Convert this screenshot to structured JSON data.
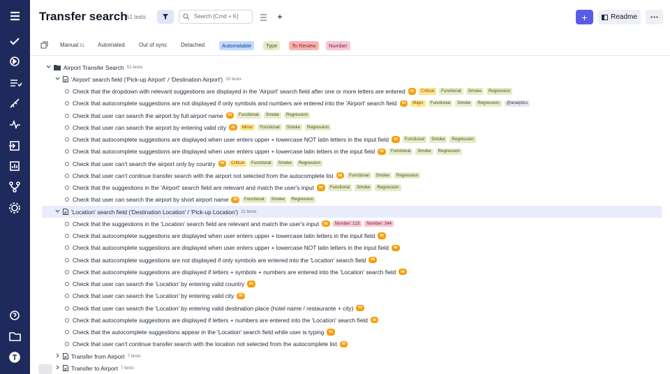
{
  "header": {
    "title": "Transfer search",
    "count": "51 tests",
    "search_placeholder": "Search [Cmd + K]",
    "add_button": "+",
    "readme_button": "Readme"
  },
  "tabs": [
    {
      "label": "Manual",
      "count": "51"
    },
    {
      "label": "Automated"
    },
    {
      "label": "Out of sync"
    },
    {
      "label": "Detached"
    }
  ],
  "filters": [
    "Automatable",
    "Type",
    "To Review",
    "Number"
  ],
  "tree": {
    "root": {
      "label": "Airport Transfer Search",
      "count": "51 tests"
    },
    "suites": [
      {
        "label": "'Airport' search field ('Pick-up Airport' / 'Destination Airport')",
        "count": "10 tests",
        "cases": [
          {
            "title": "Check that the dropdown with relevant suggestions are displayed in the 'Airport' search field after one or more letters are entered",
            "layer": "m",
            "priority": "Critical",
            "types": [
              "Functional",
              "Smoke",
              "Regression"
            ]
          },
          {
            "title": "Check that autocomplete suggestions are not displayed if only symbols and numbers are entered into the 'Airport' search field",
            "layer": "m",
            "priority": "Major",
            "types": [
              "Functional",
              "Smoke",
              "Regression"
            ],
            "labels": [
              "@analytics"
            ]
          },
          {
            "title": "Check that user can search the airport by full airport name",
            "layer": "m",
            "types": [
              "Functional",
              "Smoke",
              "Regression"
            ]
          },
          {
            "title": "Check that user can search the airport by entering valid city",
            "layer": "m",
            "priority": "Minor",
            "types": [
              "Functional",
              "Smoke",
              "Regression"
            ]
          },
          {
            "title": "Check that autocomplete suggestions are displayed when user enters upper + lowercase NOT latin letters in the input field",
            "layer": "m",
            "types": [
              "Functional",
              "Smoke",
              "Regression"
            ]
          },
          {
            "title": "Check that autocomplete suggestions are displayed when user enters upper + lowercase latin letters in the input field",
            "layer": "m",
            "types": [
              "Functional",
              "Smoke",
              "Regression"
            ]
          },
          {
            "title": "Check that user can't search the airport only by country",
            "layer": "m",
            "priority": "Critical",
            "types": [
              "Functional",
              "Smoke",
              "Regression"
            ]
          },
          {
            "title": "Check that user can't continue transfer search with the airport not selected from the autocomplete list",
            "layer": "m",
            "types": [
              "Functional",
              "Smoke",
              "Regression"
            ]
          },
          {
            "title": "Check that the suggestions in the 'Airport' search field are relevant and match the user's input",
            "layer": "m",
            "types": [
              "Functional",
              "Smoke",
              "Regression"
            ]
          },
          {
            "title": "Check that user can search the airport by short airport name",
            "layer": "m",
            "types": [
              "Functional",
              "Smoke",
              "Regression"
            ]
          }
        ]
      },
      {
        "label": "'Location' search field ('Destination Location' / 'Pick-up Location')",
        "count": "11 tests",
        "cases": [
          {
            "title": "Check that the suggestions in the 'Location' search field are relevant and match the user's input",
            "layer": "m",
            "numbers": [
              "Number: 123",
              "Number: 344"
            ]
          },
          {
            "title": "Check that autocomplete suggestions are displayed when user enters upper + lowercase latin letters in the input field",
            "layer": "m"
          },
          {
            "title": "Check that autocomplete suggestions are displayed when user enters upper + lowercase NOT latin letters in the input field",
            "layer": "m"
          },
          {
            "title": "Check that autocomplete suggestions are not displayed if only symbols are entered into the 'Location' search field",
            "layer": "m"
          },
          {
            "title": "Check that autocomplete suggestions are displayed if letters + symbols + numbers are entered into the 'Location' search field",
            "layer": "m"
          },
          {
            "title": "Check that user can search the 'Location' by entering valid country",
            "layer": "m"
          },
          {
            "title": "Check that user can search the 'Location' by entering valid city",
            "layer": "m"
          },
          {
            "title": "Check that user can search the 'Location' by entering valid destination place (hotel name / restaurante + city)",
            "layer": "m"
          },
          {
            "title": "Check that autocomplete suggestions are displayed if letters + numbers are entered into the 'Location' search field",
            "layer": "m"
          },
          {
            "title": "Check that the autocomplete suggestions appear in the 'Location' search field while user is typing",
            "layer": "m"
          },
          {
            "title": "Check that user can't continue transfer search with the location not selected from the autocomplete list",
            "layer": "m"
          }
        ]
      },
      {
        "label": "Transfer from Airport",
        "count": "7 tests"
      },
      {
        "label": "Transfer to Airport",
        "count": "7 tests"
      }
    ]
  }
}
